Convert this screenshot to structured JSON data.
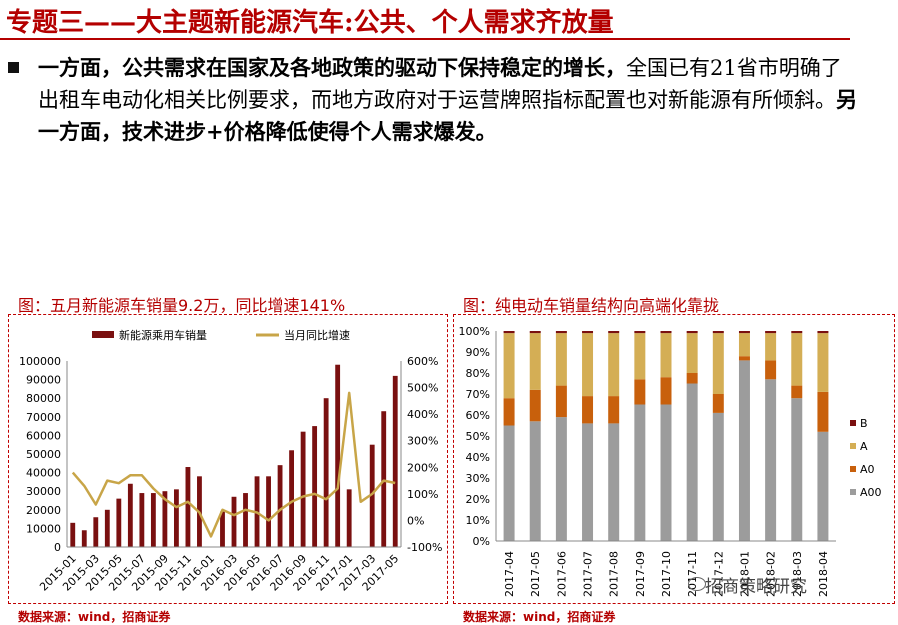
{
  "header": {
    "title": "专题三——大主题新能源汽车:公共、个人需求齐放量"
  },
  "paragraph": {
    "part1": "一方面，公共需求在国家及各地政策的驱动下保持稳定的增长，",
    "part2": "全国已有21省市明确了出租车电动化相关比例要求，而地方政府对于运营牌照指标配置也对新能源有所倾斜。",
    "part3": "另一方面，技术进步+价格降低使得个人需求爆发。"
  },
  "left_figure": {
    "caption": "图：五月新能源车销量9.2万，同比增速141%",
    "source": "数据来源：wind，招商证券"
  },
  "right_figure": {
    "caption": "图：纯电动车销量结构向高端化靠拢",
    "source": "数据来源：wind，招商证券"
  },
  "watermark": "招商策略研究",
  "colors": {
    "accent": "#b40000",
    "bar": "#7a1010",
    "line": "#c8a548",
    "A": "#d4ae55",
    "A0": "#c8600c",
    "A00": "#9c9c9c",
    "B": "#7a1010"
  },
  "chart_data": [
    {
      "type": "bar",
      "combo": "bar+line (dual axis)",
      "x": [
        "2015-01",
        "2015-02",
        "2015-03",
        "2015-04",
        "2015-05",
        "2015-06",
        "2015-07",
        "2015-08",
        "2015-09",
        "2015-10",
        "2015-11",
        "2015-12",
        "2016-01",
        "2016-02",
        "2016-03",
        "2016-04",
        "2016-05",
        "2016-06",
        "2016-07",
        "2016-08",
        "2016-09",
        "2016-10",
        "2016-11",
        "2016-12",
        "2017-01",
        "2017-02",
        "2017-03",
        "2017-04",
        "2017-05"
      ],
      "x_tick_labels": [
        "2015-01",
        "2015-03",
        "2015-05",
        "2015-07",
        "2015-09",
        "2015-11",
        "2016-01",
        "2016-03",
        "2016-05",
        "2016-07",
        "2016-09",
        "2016-11",
        "2017-01",
        "2017-03",
        "2017-05"
      ],
      "series": [
        {
          "name": "新能源乘用车销量",
          "axis": "left",
          "values": [
            13000,
            9000,
            16000,
            20000,
            26000,
            34000,
            29000,
            29000,
            30000,
            31000,
            43000,
            38000,
            0,
            19000,
            27000,
            29000,
            38000,
            38000,
            44000,
            52000,
            62000,
            65000,
            80000,
            98000,
            31000,
            0,
            55000,
            73000,
            92000
          ]
        },
        {
          "name": "当月同比增速",
          "axis": "right",
          "type": "line",
          "values": [
            1.8,
            1.3,
            0.6,
            1.5,
            1.4,
            1.7,
            1.7,
            1.2,
            0.8,
            0.5,
            0.7,
            0.3,
            -0.6,
            0.4,
            0.2,
            0.4,
            0.3,
            0.0,
            0.4,
            0.7,
            0.9,
            1.0,
            0.8,
            1.2,
            4.8,
            0.7,
            1.0,
            1.5,
            1.41
          ]
        }
      ],
      "y_left_ticks": [
        "0",
        "10000",
        "20000",
        "30000",
        "40000",
        "50000",
        "60000",
        "70000",
        "80000",
        "90000",
        "100000"
      ],
      "y_right_ticks": [
        "-100%",
        "0%",
        "100%",
        "200%",
        "300%",
        "400%",
        "500%",
        "600%"
      ],
      "ylim_left": [
        0,
        100000
      ],
      "ylim_right": [
        -1,
        6
      ],
      "legend": "top"
    },
    {
      "type": "bar",
      "stacked": true,
      "categories": [
        "2017-04",
        "2017-05",
        "2017-06",
        "2017-07",
        "2017-08",
        "2017-09",
        "2017-10",
        "2017-11",
        "2017-12",
        "2018-01",
        "2018-02",
        "2018-03",
        "2018-04"
      ],
      "series": [
        {
          "name": "A00",
          "values": [
            0.55,
            0.57,
            0.59,
            0.56,
            0.56,
            0.65,
            0.65,
            0.75,
            0.61,
            0.86,
            0.77,
            0.68,
            0.52
          ]
        },
        {
          "name": "A0",
          "values": [
            0.13,
            0.15,
            0.15,
            0.13,
            0.13,
            0.12,
            0.13,
            0.05,
            0.09,
            0.02,
            0.09,
            0.06,
            0.19
          ]
        },
        {
          "name": "A",
          "values": [
            0.31,
            0.27,
            0.25,
            0.3,
            0.3,
            0.22,
            0.21,
            0.19,
            0.29,
            0.11,
            0.13,
            0.25,
            0.28
          ]
        },
        {
          "name": "B",
          "values": [
            0.01,
            0.01,
            0.01,
            0.01,
            0.01,
            0.01,
            0.01,
            0.01,
            0.01,
            0.01,
            0.01,
            0.01,
            0.01
          ]
        }
      ],
      "y_ticks": [
        "0%",
        "10%",
        "20%",
        "30%",
        "40%",
        "50%",
        "60%",
        "70%",
        "80%",
        "90%",
        "100%"
      ],
      "ylim": [
        0,
        1
      ],
      "legend": "right"
    }
  ]
}
